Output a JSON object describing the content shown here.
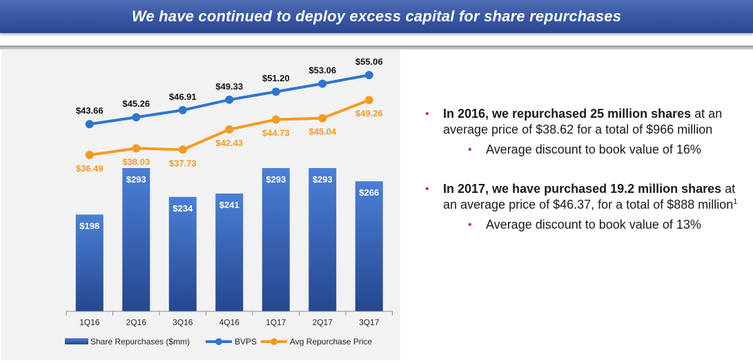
{
  "header": {
    "title": "We have continued to deploy excess capital for share repurchases"
  },
  "chart_data": {
    "type": "bar",
    "categories": [
      "1Q16",
      "2Q16",
      "3Q16",
      "4Q16",
      "1Q17",
      "2Q17",
      "3Q17"
    ],
    "bar_series": {
      "name": "Share Repurchases ($mm)",
      "values": [
        198,
        293,
        234,
        241,
        293,
        293,
        266
      ],
      "labels": [
        "$198",
        "$293",
        "$234",
        "$241",
        "$293",
        "$293",
        "$266"
      ],
      "color": "#3a67c2"
    },
    "line_series": [
      {
        "name": "BVPS",
        "values": [
          43.66,
          45.26,
          46.91,
          49.33,
          51.2,
          53.06,
          55.06
        ],
        "labels": [
          "$43.66",
          "$45.26",
          "$46.91",
          "$49.33",
          "$51.20",
          "$53.06",
          "$55.06"
        ],
        "color": "#2e75d0"
      },
      {
        "name": "Avg Repurchase Price",
        "values": [
          36.49,
          38.03,
          37.73,
          42.43,
          44.73,
          45.04,
          49.26
        ],
        "labels": [
          "$36.49",
          "$38.03",
          "$37.73",
          "$42.43",
          "$44.73",
          "$45.04",
          "$49.26"
        ],
        "color": "#f59a23"
      }
    ],
    "legend_position": "bottom",
    "grid": false
  },
  "bullets": {
    "p1_bold": "In 2016, we repurchased 25 million shares",
    "p1_rest": " at an average price of $38.62 for a total of $966 million",
    "p1_sub": "Average discount to book value of 16%",
    "p2_bold": "In 2017, we have purchased 19.2 million shares",
    "p2_rest": " at an average price of $46.37, for a total of $888 million",
    "p2_sup": "1",
    "p2_sub": "Average discount to book value of 13%"
  }
}
